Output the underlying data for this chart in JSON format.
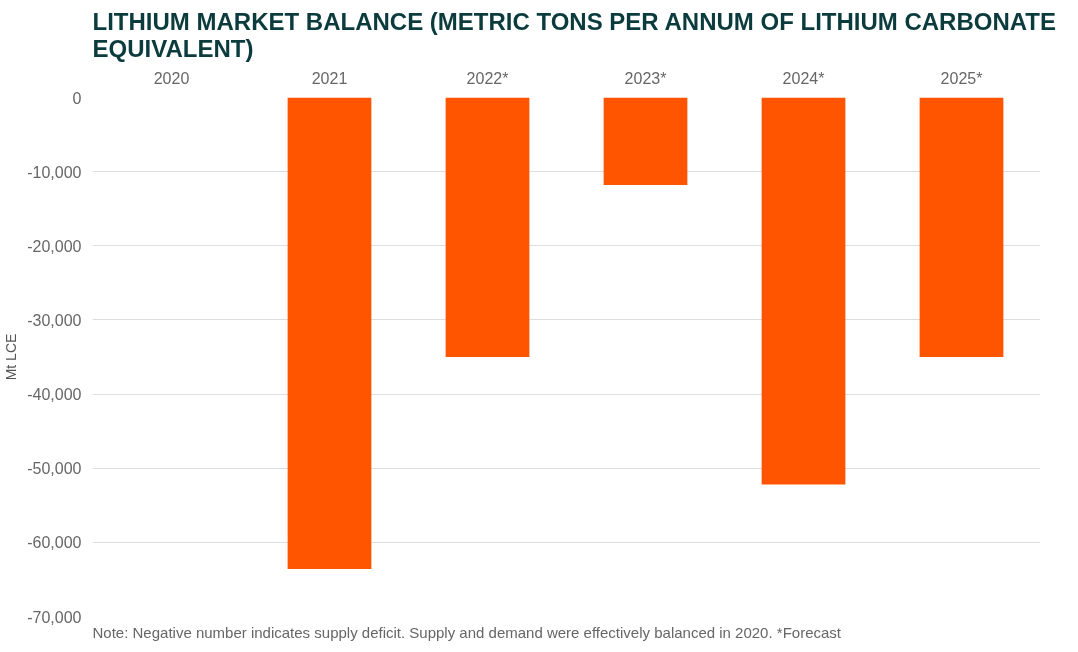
{
  "chart_data": {
    "type": "bar",
    "title": "LITHIUM MARKET BALANCE (METRIC TONS PER ANNUM OF LITHIUM CARBONATE EQUIVALENT)",
    "categories": [
      "2020",
      "2021",
      "2022*",
      "2023*",
      "2024*",
      "2025*"
    ],
    "values": [
      0,
      -63600,
      -35000,
      -11800,
      -52200,
      -35000
    ],
    "color": "#ff5500",
    "ylabel": "Mt LCE",
    "ylim": [
      -70000,
      0
    ],
    "yticks": [
      0,
      {
        "value": -10000,
        "label": "-10,000"
      },
      {
        "value": -20000,
        "label": "-20,000"
      },
      {
        "value": -30000,
        "label": "-30,000"
      },
      {
        "value": -40000,
        "label": "-40,000"
      },
      {
        "value": -50000,
        "label": "-50,000"
      },
      {
        "value": -60000,
        "label": "-60,000"
      },
      {
        "value": -70000,
        "label": "-70,000"
      }
    ],
    "grid": "y",
    "annotations": [
      "Note: Negative number indicates supply deficit. Supply and demand were effectively balanced in 2020. *Forecast"
    ]
  }
}
